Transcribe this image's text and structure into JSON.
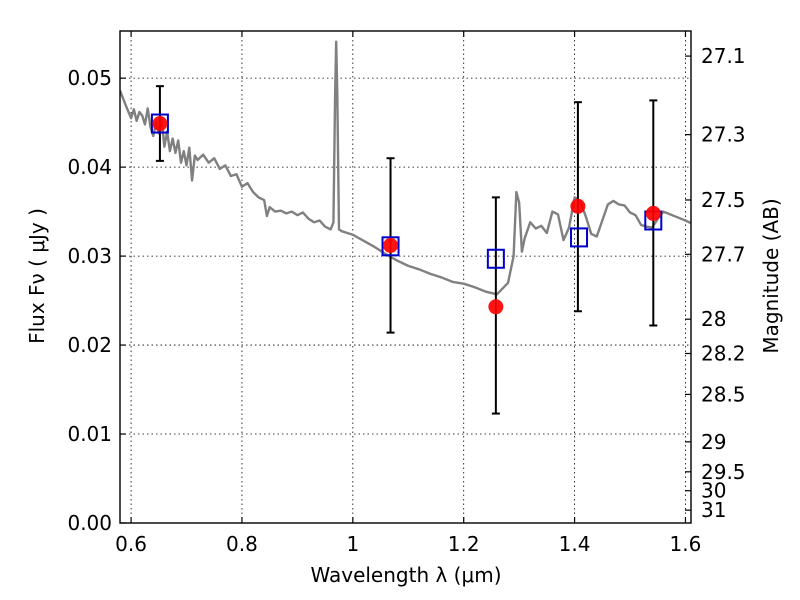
{
  "chart_data": {
    "type": "scatter",
    "xlabel": "Wavelength  λ (μm)",
    "ylabel": "Flux  Fν  ( μJy )",
    "ylabel_right": "Magnitude (AB)",
    "xlim": [
      0.58,
      1.61
    ],
    "ylim": [
      0.0,
      0.0553
    ],
    "x_ticks": [
      0.6,
      0.8,
      1.0,
      1.2,
      1.4,
      1.6
    ],
    "x_tick_labels": [
      "0.6",
      "0.8",
      "1",
      "1.2",
      "1.4",
      "1.6"
    ],
    "y_ticks": [
      0.0,
      0.01,
      0.02,
      0.03,
      0.04,
      0.05
    ],
    "y_tick_labels": [
      "0.00",
      "0.01",
      "0.02",
      "0.03",
      "0.04",
      "0.05"
    ],
    "right_ticks": [
      {
        "mag": 27.1,
        "label": "27.1"
      },
      {
        "mag": 27.3,
        "label": "27.3"
      },
      {
        "mag": 27.5,
        "label": "27.5"
      },
      {
        "mag": 27.7,
        "label": "27.7"
      },
      {
        "mag": 28.0,
        "label": "28"
      },
      {
        "mag": 28.2,
        "label": "28.2"
      },
      {
        "mag": 28.5,
        "label": "28.5"
      },
      {
        "mag": 29.0,
        "label": "29"
      },
      {
        "mag": 29.5,
        "label": "29.5"
      },
      {
        "mag": 30.0,
        "label": "30"
      },
      {
        "mag": 31.0,
        "label": "31"
      }
    ],
    "grid": true,
    "series": [
      {
        "kind": "line",
        "color": "#808080",
        "x": [
          0.58,
          0.59,
          0.6,
          0.605,
          0.61,
          0.615,
          0.62,
          0.625,
          0.63,
          0.635,
          0.64,
          0.645,
          0.65,
          0.655,
          0.66,
          0.665,
          0.67,
          0.675,
          0.68,
          0.685,
          0.69,
          0.695,
          0.7,
          0.705,
          0.71,
          0.715,
          0.72,
          0.73,
          0.74,
          0.75,
          0.76,
          0.77,
          0.78,
          0.79,
          0.8,
          0.81,
          0.82,
          0.83,
          0.84,
          0.845,
          0.85,
          0.86,
          0.87,
          0.88,
          0.89,
          0.9,
          0.91,
          0.92,
          0.93,
          0.94,
          0.95,
          0.96,
          0.965,
          0.968,
          0.97,
          0.972,
          0.975,
          0.98,
          0.99,
          1.0,
          1.02,
          1.04,
          1.06,
          1.08,
          1.1,
          1.12,
          1.14,
          1.16,
          1.18,
          1.2,
          1.22,
          1.24,
          1.26,
          1.28,
          1.29,
          1.295,
          1.3,
          1.305,
          1.31,
          1.32,
          1.33,
          1.34,
          1.35,
          1.36,
          1.37,
          1.38,
          1.39,
          1.4,
          1.41,
          1.42,
          1.43,
          1.44,
          1.45,
          1.46,
          1.47,
          1.48,
          1.49,
          1.5,
          1.51,
          1.52,
          1.53,
          1.54,
          1.55,
          1.56,
          1.58,
          1.6,
          1.61
        ],
        "y": [
          0.0486,
          0.047,
          0.0455,
          0.0465,
          0.0452,
          0.0462,
          0.0458,
          0.0448,
          0.0466,
          0.0445,
          0.0435,
          0.045,
          0.0438,
          0.0455,
          0.0423,
          0.044,
          0.0418,
          0.0432,
          0.0416,
          0.043,
          0.0405,
          0.0418,
          0.0402,
          0.0422,
          0.0385,
          0.0413,
          0.0408,
          0.0414,
          0.0405,
          0.041,
          0.0398,
          0.0402,
          0.039,
          0.0392,
          0.0378,
          0.0382,
          0.0372,
          0.0366,
          0.0363,
          0.0345,
          0.0355,
          0.035,
          0.0351,
          0.0348,
          0.035,
          0.0346,
          0.0349,
          0.0342,
          0.0338,
          0.034,
          0.0333,
          0.033,
          0.0338,
          0.048,
          0.0541,
          0.048,
          0.033,
          0.0328,
          0.0326,
          0.0324,
          0.0317,
          0.031,
          0.0302,
          0.0295,
          0.0289,
          0.0285,
          0.028,
          0.0276,
          0.0271,
          0.0269,
          0.0265,
          0.026,
          0.0257,
          0.027,
          0.03,
          0.0372,
          0.036,
          0.0305,
          0.032,
          0.0338,
          0.0331,
          0.0334,
          0.0326,
          0.035,
          0.0347,
          0.0318,
          0.0332,
          0.0366,
          0.0362,
          0.0345,
          0.0325,
          0.0322,
          0.034,
          0.0358,
          0.0362,
          0.0358,
          0.0357,
          0.0349,
          0.0346,
          0.0335,
          0.0333,
          0.0332,
          0.0342,
          0.035,
          0.0345,
          0.034,
          0.0337
        ]
      },
      {
        "kind": "squares",
        "color": "#0000cc",
        "x": [
          0.652,
          1.068,
          1.258,
          1.408,
          1.542
        ],
        "y": [
          0.0449,
          0.0311,
          0.0297,
          0.0321,
          0.034
        ]
      },
      {
        "kind": "points_with_errorbars",
        "color": "#ff0000",
        "x": [
          0.652,
          1.068,
          1.258,
          1.406,
          1.542
        ],
        "y": [
          0.0449,
          0.0312,
          0.0243,
          0.0356,
          0.0348
        ],
        "yerr_low": [
          0.0407,
          0.0214,
          0.0123,
          0.0238,
          0.0222
        ],
        "yerr_high": [
          0.0491,
          0.041,
          0.0366,
          0.0473,
          0.0475
        ]
      }
    ]
  }
}
